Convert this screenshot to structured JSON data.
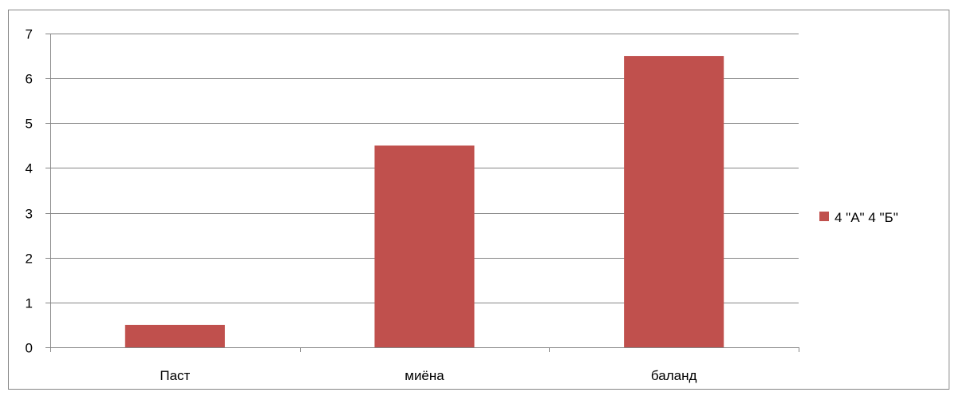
{
  "chart_data": {
    "type": "bar",
    "categories": [
      "Паст",
      "миёна",
      "баланд"
    ],
    "series": [
      {
        "name": "4 \"А\" 4 \"Б\"",
        "values": [
          0.5,
          4.5,
          6.5
        ],
        "color": "#c0504d"
      }
    ],
    "ylim": [
      0,
      7
    ],
    "yticks": [
      0,
      1,
      2,
      3,
      4,
      5,
      6,
      7
    ],
    "grid": true,
    "legend_position": "right",
    "gridline_color": "#868686"
  }
}
